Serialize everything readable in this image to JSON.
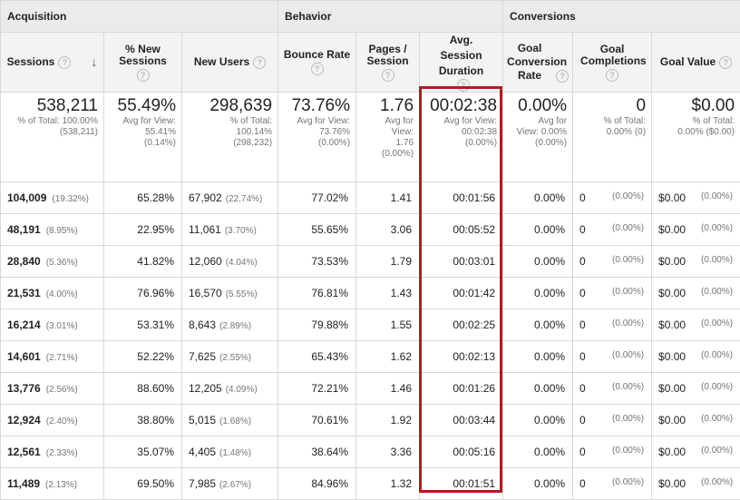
{
  "groups": {
    "acquisition": "Acquisition",
    "behavior": "Behavior",
    "conversions": "Conversions"
  },
  "headers": {
    "sessions": "Sessions",
    "new_sessions": "% New Sessions",
    "new_users": "New Users",
    "bounce_rate": "Bounce Rate",
    "pages_session": "Pages / Session",
    "avg_duration": "Avg. Session Duration",
    "goal_conv_rate": "Goal Conversion Rate",
    "goal_completions": "Goal Completions",
    "goal_value": "Goal Value"
  },
  "help_glyph": "?",
  "sort_glyph": "↓",
  "totals": {
    "sessions": {
      "main": "538,211",
      "sub1": "% of Total: 100.00%",
      "sub2": "(538,211)"
    },
    "new_sessions": {
      "main": "55.49%",
      "sub1": "Avg for View:",
      "sub2": "55.41%",
      "sub3": "(0.14%)"
    },
    "new_users": {
      "main": "298,639",
      "sub1": "% of Total:",
      "sub2": "100.14%",
      "sub3": "(298,232)"
    },
    "bounce_rate": {
      "main": "73.76%",
      "sub1": "Avg for View:",
      "sub2": "73.76%",
      "sub3": "(0.00%)"
    },
    "pages_session": {
      "main": "1.76",
      "sub1": "Avg for",
      "sub2": "View:",
      "sub3": "1.76",
      "sub4": "(0.00%)"
    },
    "avg_duration": {
      "main": "00:02:38",
      "sub1": "Avg for View:",
      "sub2": "00:02:38",
      "sub3": "(0.00%)"
    },
    "goal_conv_rate": {
      "main": "0.00%",
      "sub1": "Avg for",
      "sub2": "View: 0.00%",
      "sub3": "(0.00%)"
    },
    "goal_completions": {
      "main": "0",
      "sub1": "% of Total:",
      "sub2": "0.00% (0)"
    },
    "goal_value": {
      "main": "$0.00",
      "sub1": "% of Total:",
      "sub2": "0.00% ($0.00)"
    }
  },
  "rows": [
    {
      "sessions": "104,009",
      "sessions_pct": "(19.32%)",
      "new_sessions": "65.28%",
      "new_users": "67,902",
      "new_users_pct": "(22.74%)",
      "bounce": "77.02%",
      "pages": "1.41",
      "duration": "00:01:56",
      "conv": "0.00%",
      "comp": "0",
      "comp_pct": "(0.00%)",
      "value": "$0.00",
      "value_pct": "(0.00%)"
    },
    {
      "sessions": "48,191",
      "sessions_pct": "(8.95%)",
      "new_sessions": "22.95%",
      "new_users": "11,061",
      "new_users_pct": "(3.70%)",
      "bounce": "55.65%",
      "pages": "3.06",
      "duration": "00:05:52",
      "conv": "0.00%",
      "comp": "0",
      "comp_pct": "(0.00%)",
      "value": "$0.00",
      "value_pct": "(0.00%)"
    },
    {
      "sessions": "28,840",
      "sessions_pct": "(5.36%)",
      "new_sessions": "41.82%",
      "new_users": "12,060",
      "new_users_pct": "(4.04%)",
      "bounce": "73.53%",
      "pages": "1.79",
      "duration": "00:03:01",
      "conv": "0.00%",
      "comp": "0",
      "comp_pct": "(0.00%)",
      "value": "$0.00",
      "value_pct": "(0.00%)"
    },
    {
      "sessions": "21,531",
      "sessions_pct": "(4.00%)",
      "new_sessions": "76.96%",
      "new_users": "16,570",
      "new_users_pct": "(5.55%)",
      "bounce": "76.81%",
      "pages": "1.43",
      "duration": "00:01:42",
      "conv": "0.00%",
      "comp": "0",
      "comp_pct": "(0.00%)",
      "value": "$0.00",
      "value_pct": "(0.00%)"
    },
    {
      "sessions": "16,214",
      "sessions_pct": "(3.01%)",
      "new_sessions": "53.31%",
      "new_users": "8,643",
      "new_users_pct": "(2.89%)",
      "bounce": "79.88%",
      "pages": "1.55",
      "duration": "00:02:25",
      "conv": "0.00%",
      "comp": "0",
      "comp_pct": "(0.00%)",
      "value": "$0.00",
      "value_pct": "(0.00%)"
    },
    {
      "sessions": "14,601",
      "sessions_pct": "(2.71%)",
      "new_sessions": "52.22%",
      "new_users": "7,625",
      "new_users_pct": "(2.55%)",
      "bounce": "65.43%",
      "pages": "1.62",
      "duration": "00:02:13",
      "conv": "0.00%",
      "comp": "0",
      "comp_pct": "(0.00%)",
      "value": "$0.00",
      "value_pct": "(0.00%)"
    },
    {
      "sessions": "13,776",
      "sessions_pct": "(2.56%)",
      "new_sessions": "88.60%",
      "new_users": "12,205",
      "new_users_pct": "(4.09%)",
      "bounce": "72.21%",
      "pages": "1.46",
      "duration": "00:01:26",
      "conv": "0.00%",
      "comp": "0",
      "comp_pct": "(0.00%)",
      "value": "$0.00",
      "value_pct": "(0.00%)"
    },
    {
      "sessions": "12,924",
      "sessions_pct": "(2.40%)",
      "new_sessions": "38.80%",
      "new_users": "5,015",
      "new_users_pct": "(1.68%)",
      "bounce": "70.61%",
      "pages": "1.92",
      "duration": "00:03:44",
      "conv": "0.00%",
      "comp": "0",
      "comp_pct": "(0.00%)",
      "value": "$0.00",
      "value_pct": "(0.00%)"
    },
    {
      "sessions": "12,561",
      "sessions_pct": "(2.33%)",
      "new_sessions": "35.07%",
      "new_users": "4,405",
      "new_users_pct": "(1.48%)",
      "bounce": "38.64%",
      "pages": "3.36",
      "duration": "00:05:16",
      "conv": "0.00%",
      "comp": "0",
      "comp_pct": "(0.00%)",
      "value": "$0.00",
      "value_pct": "(0.00%)"
    },
    {
      "sessions": "11,489",
      "sessions_pct": "(2.13%)",
      "new_sessions": "69.50%",
      "new_users": "7,985",
      "new_users_pct": "(2.67%)",
      "bounce": "84.96%",
      "pages": "1.32",
      "duration": "00:01:51",
      "conv": "0.00%",
      "comp": "0",
      "comp_pct": "(0.00%)",
      "value": "$0.00",
      "value_pct": "(0.00%)"
    }
  ],
  "colors": {
    "highlight": "#b11c24",
    "header_bg": "#f3f3f3",
    "group_bg": "#ebebeb"
  }
}
